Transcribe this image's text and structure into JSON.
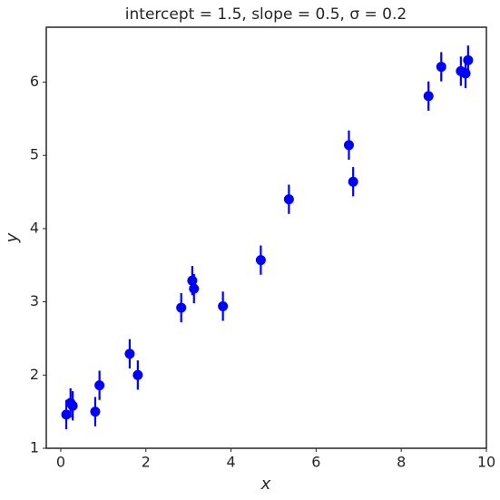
{
  "chart_data": {
    "type": "errorbar",
    "title": "intercept = 1.5, slope = 0.5, σ = 0.2",
    "x_label": "x",
    "y_label": "y",
    "x": [
      0.13,
      0.23,
      0.28,
      0.81,
      0.91,
      1.62,
      1.81,
      2.83,
      3.09,
      3.13,
      3.81,
      4.7,
      5.36,
      6.77,
      6.87,
      8.64,
      8.94,
      9.4,
      9.51,
      9.57
    ],
    "values": [
      1.46,
      1.62,
      1.58,
      1.5,
      1.86,
      2.29,
      2.0,
      2.92,
      3.29,
      3.18,
      2.94,
      3.57,
      4.4,
      5.14,
      4.64,
      5.81,
      6.21,
      6.15,
      6.12,
      6.3
    ],
    "errors": [
      0.2,
      0.2,
      0.2,
      0.2,
      0.2,
      0.2,
      0.2,
      0.2,
      0.2,
      0.2,
      0.2,
      0.2,
      0.2,
      0.2,
      0.2,
      0.2,
      0.2,
      0.2,
      0.2,
      0.2
    ],
    "color": "#0000ff",
    "xlim": [
      -0.34,
      10
    ],
    "ylim": [
      1,
      6.75
    ],
    "xticks": [
      0,
      2,
      4,
      6,
      8,
      10
    ],
    "yticks": [
      1,
      2,
      3,
      4,
      5,
      6
    ]
  }
}
